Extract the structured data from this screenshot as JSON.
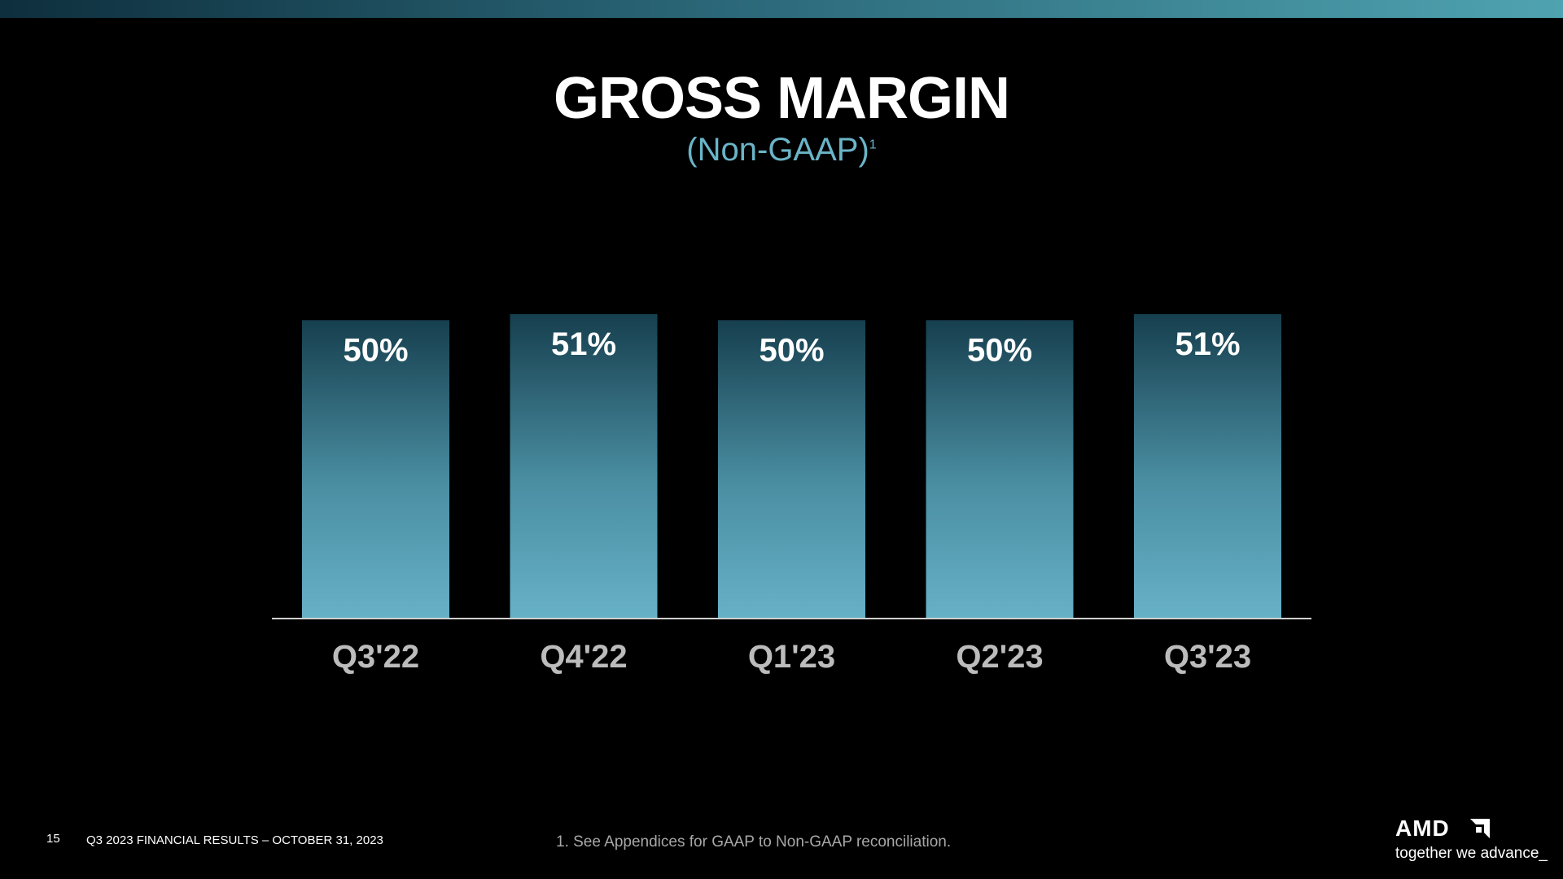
{
  "slide": {
    "title": "GROSS MARGIN",
    "subtitle": "(Non-GAAP)",
    "subtitle_footnote_mark": "1"
  },
  "chart_data": {
    "type": "bar",
    "categories": [
      "Q3'22",
      "Q4'22",
      "Q1'23",
      "Q2'23",
      "Q3'23"
    ],
    "values": [
      50,
      51,
      50,
      50,
      51
    ],
    "data_labels": [
      "50%",
      "51%",
      "50%",
      "50%",
      "51%"
    ],
    "title": "GROSS MARGIN",
    "subtitle": "(Non-GAAP)",
    "ylim": [
      0,
      51
    ],
    "grid": false,
    "colors": {
      "bar_top": "#163f4e",
      "bar_bottom": "#67b1c7",
      "baseline": "#d0d0d0"
    }
  },
  "footer": {
    "page_number": "15",
    "event": "Q3 2023 FINANCIAL RESULTS – OCTOBER 31, 2023",
    "footnote": "1.  See Appendices for GAAP to Non-GAAP reconciliation."
  },
  "logo": {
    "name": "AMD",
    "tagline": "together we advance_",
    "icon": "amd-arrow-icon"
  }
}
